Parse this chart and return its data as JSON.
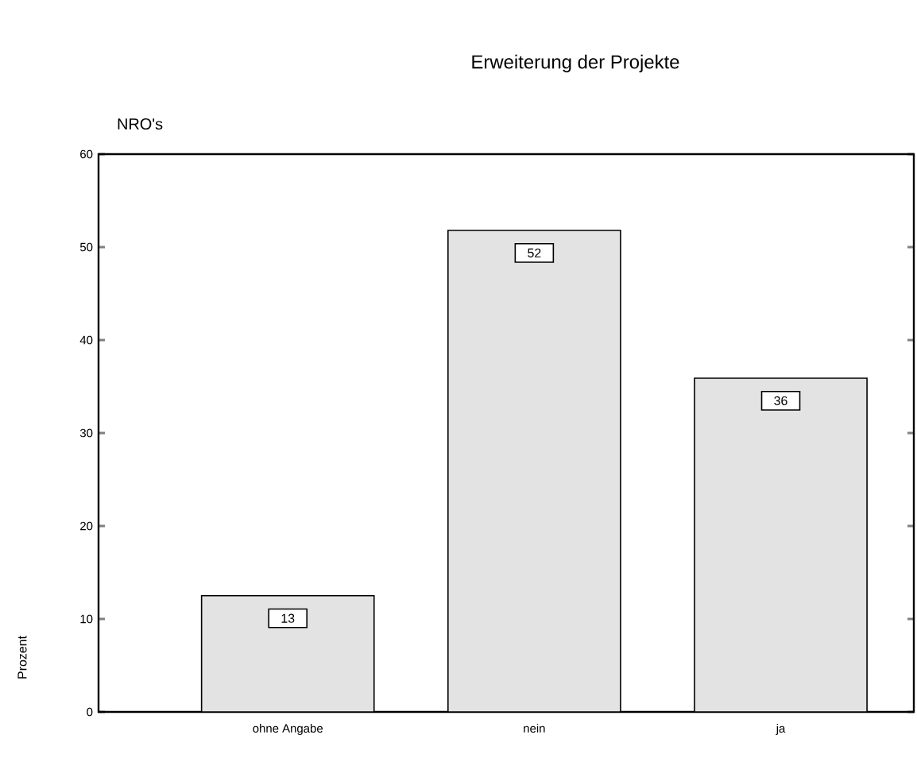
{
  "chart_data": {
    "type": "bar",
    "title": "Erweiterung der Projekte",
    "subtitle": "NRO's",
    "ylabel": "Prozent",
    "categories": [
      "ohne Angabe",
      "nein",
      "ja"
    ],
    "values": [
      12.5,
      51.8,
      35.9
    ],
    "value_labels": [
      "13",
      "52",
      "36"
    ],
    "color": "#e3e3e3",
    "ylim": [
      0,
      60
    ],
    "yticks": [
      0,
      10,
      20,
      30,
      40,
      50,
      60
    ],
    "grid": false
  }
}
